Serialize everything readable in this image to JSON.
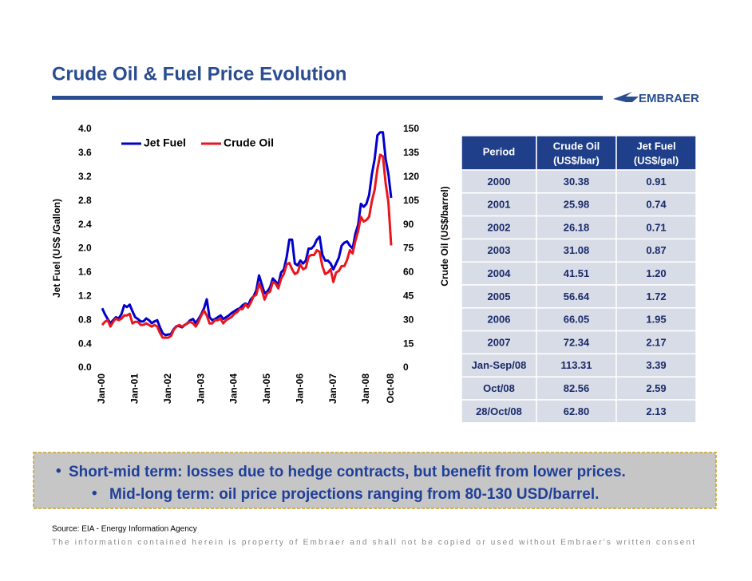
{
  "header": {
    "title": "Crude Oil & Fuel Price Evolution",
    "logo": "EMBRAER"
  },
  "chart_data": {
    "type": "line",
    "legend": "top-left",
    "y_label": "Jet Fuel (US$ /Gallon)",
    "y2_label": "Crude Oil (US$/barrel)",
    "categories": [
      "Jan-00",
      null,
      null,
      null,
      null,
      null,
      null,
      null,
      null,
      null,
      null,
      null,
      "Jan-01",
      null,
      null,
      null,
      null,
      null,
      null,
      null,
      null,
      null,
      null,
      null,
      "Jan-02",
      null,
      null,
      null,
      null,
      null,
      null,
      null,
      null,
      null,
      null,
      null,
      "Jan-03",
      null,
      null,
      null,
      null,
      null,
      null,
      null,
      null,
      null,
      null,
      null,
      "Jan-04",
      null,
      null,
      null,
      null,
      null,
      null,
      null,
      null,
      null,
      null,
      null,
      "Jan-05",
      null,
      null,
      null,
      null,
      null,
      null,
      null,
      null,
      null,
      null,
      null,
      "Jan-06",
      null,
      null,
      null,
      null,
      null,
      null,
      null,
      null,
      null,
      null,
      null,
      "Jan-07",
      null,
      null,
      null,
      null,
      null,
      null,
      null,
      null,
      null,
      null,
      null,
      "Jan-08",
      null,
      null,
      null,
      null,
      null,
      null,
      null,
      null,
      "Oct-08"
    ],
    "series": [
      {
        "name": "Jet Fuel",
        "color": "#0000cc",
        "axis": "y",
        "values": [
          1.0,
          0.9,
          0.82,
          0.75,
          0.8,
          0.85,
          0.83,
          0.9,
          1.05,
          1.02,
          1.06,
          0.95,
          0.85,
          0.82,
          0.78,
          0.78,
          0.83,
          0.8,
          0.75,
          0.78,
          0.8,
          0.68,
          0.58,
          0.55,
          0.56,
          0.57,
          0.65,
          0.7,
          0.7,
          0.68,
          0.72,
          0.75,
          0.8,
          0.82,
          0.75,
          0.82,
          0.9,
          1.0,
          1.15,
          0.85,
          0.8,
          0.82,
          0.85,
          0.88,
          0.82,
          0.85,
          0.88,
          0.92,
          0.95,
          0.98,
          1.0,
          1.05,
          1.08,
          1.05,
          1.15,
          1.2,
          1.3,
          1.55,
          1.4,
          1.25,
          1.28,
          1.35,
          1.5,
          1.45,
          1.4,
          1.6,
          1.65,
          1.85,
          2.15,
          2.15,
          1.75,
          1.72,
          1.8,
          1.75,
          1.8,
          2.0,
          2.0,
          2.05,
          2.15,
          2.2,
          1.9,
          1.8,
          1.8,
          1.75,
          1.65,
          1.75,
          1.85,
          2.05,
          2.1,
          2.12,
          2.05,
          2.0,
          2.25,
          2.4,
          2.75,
          2.7,
          2.75,
          2.9,
          3.25,
          3.5,
          3.9,
          3.95,
          3.95,
          3.5,
          3.25,
          2.85
        ]
      },
      {
        "name": "Crude Oil",
        "color": "#e8161e",
        "axis": "y2",
        "values": [
          27,
          29,
          30,
          26,
          29,
          31,
          30,
          31,
          33,
          33,
          34,
          28,
          29,
          29,
          27,
          27,
          28,
          27,
          26,
          27,
          26,
          22,
          19,
          19,
          19,
          20,
          24,
          26,
          27,
          26,
          27,
          28,
          29,
          28,
          26,
          29,
          33,
          36,
          33,
          28,
          28,
          30,
          30,
          31,
          28,
          30,
          31,
          32,
          34,
          35,
          37,
          37,
          40,
          38,
          41,
          45,
          46,
          53,
          49,
          43,
          47,
          48,
          54,
          53,
          50,
          56,
          59,
          65,
          66,
          62,
          59,
          60,
          65,
          62,
          63,
          70,
          71,
          71,
          74,
          73,
          64,
          59,
          60,
          62,
          54,
          60,
          61,
          64,
          64,
          68,
          74,
          72,
          80,
          86,
          95,
          92,
          93,
          95,
          105,
          112,
          125,
          134,
          133,
          116,
          104,
          77
        ]
      }
    ],
    "ylim": [
      0,
      4
    ],
    "yticks": [
      {
        "value": 0,
        "label": "0.0"
      },
      0.4,
      0.8,
      1.2,
      1.6,
      {
        "value": 2,
        "label": "2.0"
      },
      2.4,
      2.8,
      3.2,
      3.6,
      {
        "value": 4,
        "label": "4.0"
      }
    ],
    "y2lim": [
      0,
      150
    ],
    "y2ticks": [
      0,
      15,
      30,
      45,
      60,
      75,
      90,
      105,
      120,
      135,
      150
    ],
    "grid": false
  },
  "table": {
    "header": [
      "Period",
      [
        "Crude Oil",
        "(US$/bar)"
      ],
      [
        "Jet Fuel",
        "(US$/gal)"
      ]
    ],
    "rows": [
      [
        "2000",
        "30.38",
        "0.91"
      ],
      [
        "2001",
        "25.98",
        "0.74"
      ],
      [
        "2002",
        "26.18",
        "0.71"
      ],
      [
        "2003",
        "31.08",
        "0.87"
      ],
      [
        "2004",
        "41.51",
        "1.20"
      ],
      [
        "2005",
        "56.64",
        "1.72"
      ],
      [
        "2006",
        "66.05",
        "1.95"
      ],
      [
        "2007",
        "72.34",
        "2.17"
      ],
      [
        "Jan-Sep/08",
        "113.31",
        "3.39"
      ],
      [
        "Oct/08",
        "82.56",
        "2.59"
      ],
      [
        "28/Oct/08",
        "62.80",
        "2.13"
      ]
    ]
  },
  "bullets": [
    "Short-mid term: losses due to hedge contracts, but benefit from lower prices.",
    "Mid-long term: oil price projections ranging from 80-130 USD/barrel."
  ],
  "source": "Source: EIA  - Energy Information Agency",
  "footer": "The information contained herein is property of Embraer and shall not be copied or used without Embraer's written consent"
}
